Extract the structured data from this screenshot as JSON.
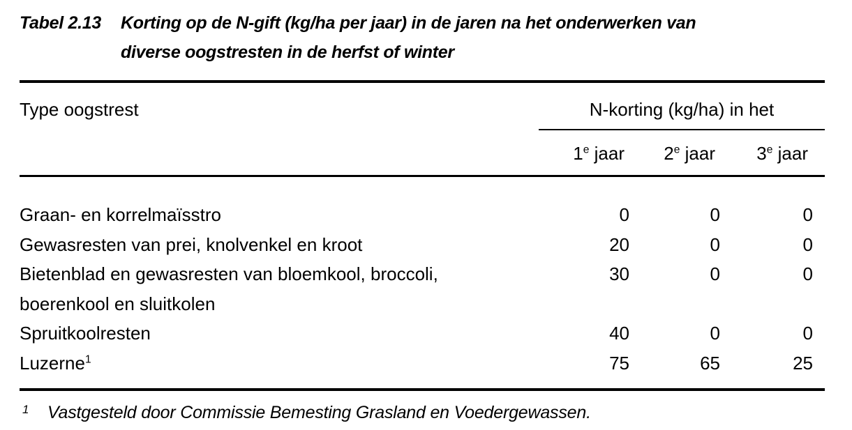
{
  "caption": {
    "label": "Tabel 2.13",
    "title_line1": "Korting op de N-gift (kg/ha per jaar) in de jaren na het onderwerken van",
    "title_line2": "diverse oogstresten in de herfst of winter"
  },
  "header": {
    "col1": "Type oogstrest",
    "group": "N-korting (kg/ha) in het",
    "years": [
      {
        "num": "1",
        "sup": "e",
        "word": "jaar"
      },
      {
        "num": "2",
        "sup": "e",
        "word": "jaar"
      },
      {
        "num": "3",
        "sup": "e",
        "word": "jaar"
      }
    ]
  },
  "rows": [
    {
      "label": "Graan- en korrelmaïsstro",
      "values": [
        "0",
        "0",
        "0"
      ]
    },
    {
      "label": "Gewasresten van prei, knolvenkel en kroot",
      "values": [
        "20",
        "0",
        "0"
      ]
    },
    {
      "label": "Bietenblad en gewasresten van bloemkool, broccoli,",
      "label_line2": "boerenkool en sluitkolen",
      "values": [
        "30",
        "0",
        "0"
      ]
    },
    {
      "label": "Spruitkoolresten",
      "values": [
        "40",
        "0",
        "0"
      ]
    },
    {
      "label": "Luzerne",
      "label_sup": "1",
      "values": [
        "75",
        "65",
        "25"
      ]
    }
  ],
  "footnote": {
    "marker": "1",
    "text": "Vastgesteld door Commissie Bemesting Grasland en Voedergewassen."
  }
}
